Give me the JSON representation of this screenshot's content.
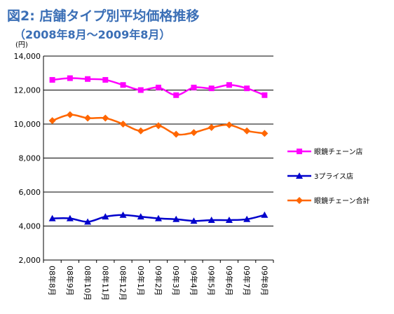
{
  "title_line1": "図2: 店舗タイプ別平均価格推移",
  "title_line2": "（2008年8月～2009年8月）",
  "chart_data": {
    "type": "line",
    "title": "図2: 店舗タイプ別平均価格推移",
    "subtitle": "（2008年8月～2009年8月）",
    "ylabel": "(円)",
    "xlabel": "",
    "ylim": [
      2000,
      14000
    ],
    "yticks": [
      2000,
      4000,
      6000,
      8000,
      10000,
      12000,
      14000
    ],
    "ytick_labels": [
      "2,000",
      "4,000",
      "6,000",
      "8,000",
      "10,000",
      "12,000",
      "14,000"
    ],
    "grid": "horizontal",
    "legend_position": "right",
    "categories": [
      "08年8月",
      "08年9月",
      "08年10月",
      "08年11月",
      "08年12月",
      "09年1月",
      "09年2月",
      "09年3月",
      "09年4月",
      "09年5月",
      "09年6月",
      "09年7月",
      "09年8月"
    ],
    "series": [
      {
        "name": "眼鏡チェーン店",
        "color": "#ff00ff",
        "marker": "square",
        "values": [
          12600,
          12700,
          12650,
          12600,
          12300,
          12000,
          12150,
          11700,
          12150,
          12100,
          12300,
          12100,
          11700
        ]
      },
      {
        "name": "3プライス店",
        "color": "#0000cc",
        "marker": "triangle",
        "values": [
          4450,
          4450,
          4250,
          4550,
          4650,
          4550,
          4450,
          4400,
          4300,
          4350,
          4350,
          4400,
          4650
        ]
      },
      {
        "name": "眼鏡チェーン合計",
        "color": "#ff6600",
        "marker": "diamond",
        "values": [
          10200,
          10550,
          10350,
          10350,
          10000,
          9600,
          9900,
          9400,
          9500,
          9800,
          9950,
          9600,
          9450
        ]
      }
    ]
  }
}
